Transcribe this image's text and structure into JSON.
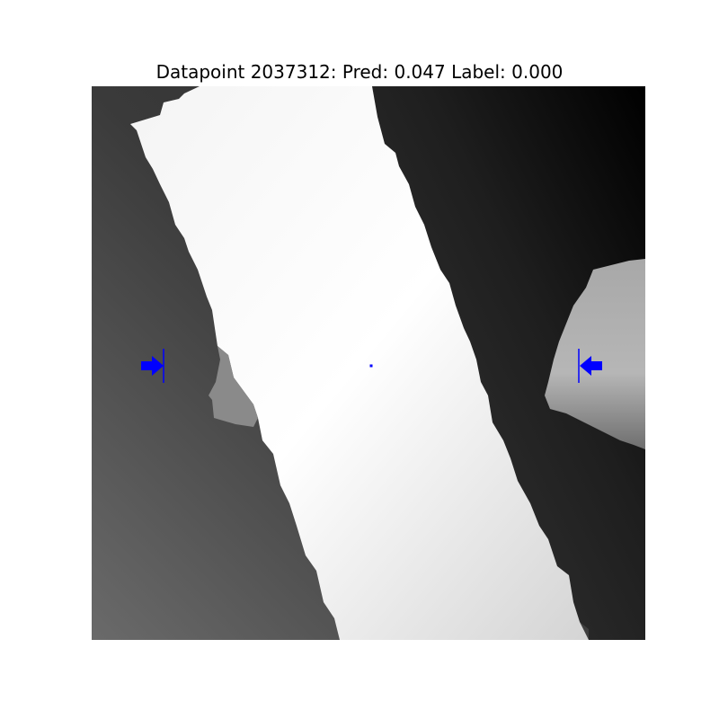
{
  "chart_data": {
    "type": "heatmap",
    "title": "Datapoint 2037312: Pred: 0.047 Label: 0.000",
    "datapoint_id": "2037312",
    "prediction": 0.047,
    "label": 0.0,
    "colormap": "grayscale",
    "axes_visible": false,
    "image_description": "depth image with a bright diagonal strip, dark background, a bright blob on the right edge",
    "markers": [
      {
        "name": "left-grasp-arrow",
        "direction": "right",
        "color": "#0000ff"
      },
      {
        "name": "right-grasp-arrow",
        "direction": "left",
        "color": "#0000ff"
      },
      {
        "name": "center-point",
        "color": "#0000ff"
      }
    ]
  }
}
